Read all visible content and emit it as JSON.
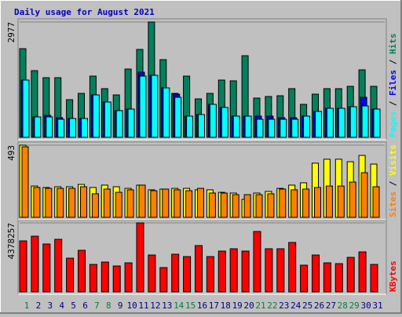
{
  "chart_data": {
    "type": "bar",
    "title": "Daily usage for August 2021",
    "categories": [
      "1",
      "2",
      "3",
      "4",
      "5",
      "6",
      "7",
      "8",
      "9",
      "10",
      "11",
      "12",
      "13",
      "14",
      "15",
      "16",
      "17",
      "18",
      "19",
      "20",
      "21",
      "22",
      "23",
      "24",
      "25",
      "26",
      "27",
      "28",
      "29",
      "30",
      "31"
    ],
    "category_colors": [
      "#008040",
      "#000080",
      "#000080",
      "#000080",
      "#000080",
      "#000080",
      "#008040",
      "#008040",
      "#000080",
      "#000080",
      "#000080",
      "#000080",
      "#000080",
      "#008040",
      "#008040",
      "#000080",
      "#000080",
      "#000080",
      "#000080",
      "#000080",
      "#008040",
      "#008040",
      "#000080",
      "#000080",
      "#000080",
      "#000080",
      "#000080",
      "#008040",
      "#008040",
      "#000080",
      "#000080"
    ],
    "legend_separator": " / ",
    "panels": [
      {
        "ylim": [
          0,
          2977
        ],
        "yticks": [
          2977
        ],
        "series": [
          {
            "name": "Hits",
            "color": "#00805c",
            "values": [
              2288,
              1721,
              1539,
              1539,
              972,
              1134,
              1580,
              1256,
              1094,
              1762,
              2268,
              2977,
              2005,
              1134,
              1580,
              992,
              1134,
              1478,
              1458,
              2106,
              1013,
              1053,
              1073,
              1256,
              851,
              1114,
              1256,
              1256,
              1316,
              1742,
              1316
            ]
          },
          {
            "name": "Files",
            "color": "#0000ff",
            "values": [
              1478,
              527,
              567,
              506,
              486,
              486,
              1094,
              911,
              689,
              729,
              1681,
              1600,
              1276,
              1114,
              547,
              587,
              851,
              770,
              547,
              547,
              547,
              547,
              506,
              506,
              547,
              668,
              749,
              749,
              790,
              1033,
              729
            ]
          },
          {
            "name": "Pages",
            "color": "#00ffff",
            "values": [
              1478,
              527,
              527,
              466,
              486,
              486,
              1094,
              911,
              689,
              729,
              1580,
              1600,
              1276,
              1033,
              547,
              587,
              851,
              770,
              547,
              547,
              466,
              466,
              466,
              466,
              547,
              668,
              749,
              749,
              790,
              810,
              729
            ]
          }
        ]
      },
      {
        "ylim": [
          0,
          493
        ],
        "yticks": [
          493
        ],
        "series": [
          {
            "name": "Visits",
            "color": "#ffff00",
            "values": [
              493,
              214,
              204,
              209,
              209,
              225,
              204,
              220,
              209,
              198,
              220,
              188,
              193,
              198,
              198,
              188,
              188,
              171,
              166,
              123,
              166,
              177,
              198,
              220,
              236,
              370,
              397,
              397,
              380,
              423,
              364
            ]
          },
          {
            "name": "Sites",
            "color": "#ff8000",
            "values": [
              482,
              204,
              198,
              198,
              198,
              209,
              161,
              193,
              171,
              188,
              220,
              182,
              193,
              188,
              182,
              198,
              166,
              166,
              155,
              155,
              155,
              161,
              193,
              188,
              193,
              204,
              214,
              214,
              241,
              305,
              209
            ]
          }
        ]
      },
      {
        "ylim": [
          0,
          4378257
        ],
        "yticks": [
          4378257
        ],
        "series": [
          {
            "name": "KBytes",
            "color": "#ff0000",
            "values": [
              3233000,
              3532000,
              3035000,
              3333000,
              2139000,
              2637000,
              1741000,
              1891000,
              1642000,
              1841000,
              4378257,
              2338000,
              1542000,
              2388000,
              2239000,
              2936000,
              2239000,
              2587000,
              2736000,
              2587000,
              3831000,
              2736000,
              2736000,
              3134000,
              1692000,
              2338000,
              1841000,
              1791000,
              2189000,
              2537000,
              1741000
            ]
          }
        ]
      }
    ]
  }
}
